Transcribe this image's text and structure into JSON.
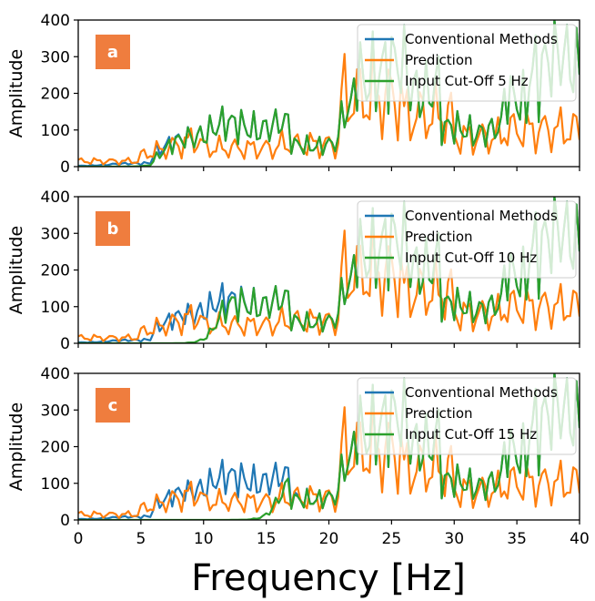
{
  "xlabel": "Frequency [Hz]",
  "colors": {
    "conventional": "#1f77b4",
    "prediction": "#ff7f0e",
    "input": "#2ca02c",
    "letter_bg": "#ef7d3e",
    "letter_fg": "#ffffff"
  },
  "chart_data": [
    {
      "type": "line",
      "panel": "a",
      "ylabel": "Amplitude",
      "xlim": [
        0,
        40
      ],
      "ylim": [
        0,
        400
      ],
      "xticks": [
        "0",
        "5",
        "10",
        "15",
        "20",
        "25",
        "30",
        "35",
        "40"
      ],
      "yticks": [
        "0",
        "100",
        "200",
        "300",
        "400"
      ],
      "cutoff_hz": 5,
      "legend": [
        "Conventional Methods",
        "Prediction",
        "Input Cut-Off 5 Hz"
      ],
      "legend_position": "top-right"
    },
    {
      "type": "line",
      "panel": "b",
      "ylabel": "Amplitude",
      "xlim": [
        0,
        40
      ],
      "ylim": [
        0,
        400
      ],
      "xticks": [
        "0",
        "5",
        "10",
        "15",
        "20",
        "25",
        "30",
        "35",
        "40"
      ],
      "yticks": [
        "0",
        "100",
        "200",
        "300",
        "400"
      ],
      "cutoff_hz": 10,
      "legend": [
        "Conventional Methods",
        "Prediction",
        "Input Cut-Off 10 Hz"
      ],
      "legend_position": "top-right"
    },
    {
      "type": "line",
      "panel": "c",
      "ylabel": "Amplitude",
      "xlim": [
        0,
        40
      ],
      "ylim": [
        0,
        400
      ],
      "xticks": [
        "0",
        "5",
        "10",
        "15",
        "20",
        "25",
        "30",
        "35",
        "40"
      ],
      "yticks": [
        "0",
        "100",
        "200",
        "300",
        "400"
      ],
      "cutoff_hz": 15,
      "legend": [
        "Conventional Methods",
        "Prediction",
        "Input Cut-Off 15 Hz"
      ],
      "legend_position": "top-right"
    }
  ]
}
